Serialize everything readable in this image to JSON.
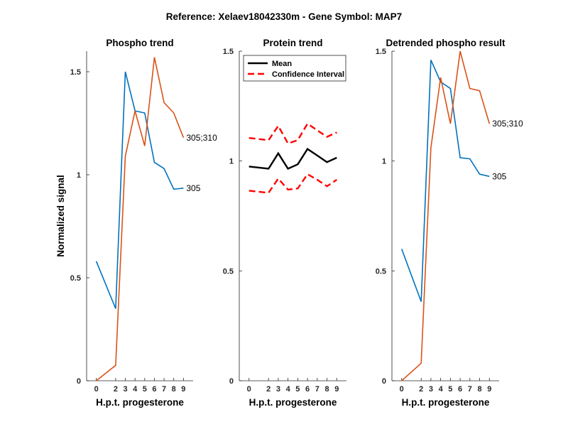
{
  "figure": {
    "title": "Reference:  Xelaev18042330m - Gene Symbol:  MAP7"
  },
  "colors": {
    "blue": "#0072BD",
    "orange": "#D95319",
    "mean": "#000000",
    "ci": "#FF0000"
  },
  "chart_data": [
    {
      "type": "line",
      "title": "Phospho trend",
      "xlabel": "H.p.t. progesterone",
      "ylabel": "Normalized signal",
      "xlim": [
        -1,
        10
      ],
      "ylim": [
        0,
        1.6
      ],
      "xticks": [
        0,
        2,
        3,
        4,
        5,
        6,
        7,
        8,
        9
      ],
      "yticks": [
        0,
        0.5,
        1,
        1.5
      ],
      "ytick_labels": [
        "0",
        "0.5",
        "1",
        "1.5"
      ],
      "x": [
        0,
        2,
        3,
        4,
        5,
        6,
        7,
        8,
        9
      ],
      "series": [
        {
          "name": "305",
          "color": "blue",
          "values": [
            0.58,
            0.35,
            1.5,
            1.31,
            1.3,
            1.06,
            1.03,
            0.93,
            0.935
          ]
        },
        {
          "name": "305;310",
          "color": "orange",
          "values": [
            0.0,
            0.075,
            1.09,
            1.31,
            1.14,
            1.57,
            1.35,
            1.3,
            1.18
          ]
        }
      ]
    },
    {
      "type": "line",
      "title": "Protein trend",
      "xlabel": "H.p.t. progesterone",
      "ylabel": "",
      "xlim": [
        -1,
        10
      ],
      "ylim": [
        0,
        1.5
      ],
      "xticks": [
        0,
        2,
        3,
        4,
        5,
        6,
        7,
        8,
        9
      ],
      "yticks": [
        0,
        0.5,
        1,
        1.5
      ],
      "ytick_labels": [
        "0",
        "0.5",
        "1",
        "1.5"
      ],
      "x": [
        0,
        2,
        3,
        4,
        5,
        6,
        7,
        8,
        9
      ],
      "legend": {
        "position": "top-left",
        "entries": [
          "Mean",
          "Confidence Interval"
        ]
      },
      "series": [
        {
          "name": "Mean",
          "color": "mean",
          "style": "solid",
          "values": [
            0.975,
            0.965,
            1.035,
            0.965,
            0.985,
            1.055,
            1.025,
            0.995,
            1.015
          ]
        },
        {
          "name": "Confidence Interval",
          "color": "ci",
          "style": "dashed",
          "values": [
            1.105,
            1.095,
            1.16,
            1.08,
            1.095,
            1.17,
            1.14,
            1.11,
            1.13
          ]
        },
        {
          "name": "Confidence Interval",
          "color": "ci",
          "style": "dashed",
          "values": [
            0.865,
            0.855,
            0.92,
            0.87,
            0.875,
            0.94,
            0.915,
            0.885,
            0.915
          ]
        }
      ]
    },
    {
      "type": "line",
      "title": "Detrended phospho result",
      "xlabel": "H.p.t. progesterone",
      "ylabel": "",
      "xlim": [
        -1,
        10
      ],
      "ylim": [
        0,
        1.5
      ],
      "xticks": [
        0,
        2,
        3,
        4,
        5,
        6,
        7,
        8,
        9
      ],
      "yticks": [
        0,
        0.5,
        1,
        1.5
      ],
      "ytick_labels": [
        "0",
        "0.5",
        "1",
        "1.5"
      ],
      "x": [
        0,
        2,
        3,
        4,
        5,
        6,
        7,
        8,
        9
      ],
      "series": [
        {
          "name": "305",
          "color": "blue",
          "values": [
            0.6,
            0.36,
            1.46,
            1.36,
            1.33,
            1.015,
            1.01,
            0.94,
            0.93
          ]
        },
        {
          "name": "305;310",
          "color": "orange",
          "values": [
            0.0,
            0.08,
            1.06,
            1.38,
            1.17,
            1.5,
            1.33,
            1.32,
            1.17
          ]
        }
      ]
    }
  ]
}
